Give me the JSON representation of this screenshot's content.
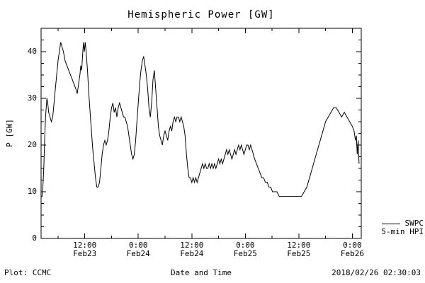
{
  "title": "Hemispheric Power [GW]",
  "axes": {
    "ylabel": "P [GW]",
    "xlabel": "Date and Time",
    "y_major_ticks": [
      0,
      10,
      20,
      30,
      40
    ],
    "y_minor_step": 2.5,
    "x_major_ticks": [
      {
        "hour": 12,
        "time": "12:00",
        "date": "Feb23"
      },
      {
        "hour": 24,
        "time": "0:00",
        "date": "Feb24"
      },
      {
        "hour": 36,
        "time": "12:00",
        "date": "Feb24"
      },
      {
        "hour": 48,
        "time": "0:00",
        "date": "Feb25"
      },
      {
        "hour": 60,
        "time": "12:00",
        "date": "Feb25"
      },
      {
        "hour": 72,
        "time": "0:00",
        "date": "Feb26"
      }
    ],
    "x_minor_step_hours": 6
  },
  "legend": {
    "label_line1": "SWPC",
    "label_line2": "5-min HPI"
  },
  "footer": {
    "left": "Plot: CCMC",
    "right": "2018/02/26 02:30:03"
  },
  "colors": {
    "line": "#000000",
    "frame": "#000000",
    "background": "#ffffff",
    "text": "#000000"
  },
  "chart_data": {
    "type": "line",
    "title": "Hemispheric Power [GW]",
    "xlabel": "Date and Time",
    "ylabel": "P [GW]",
    "x_unit": "hours since 2018-02-23 00:00 UT",
    "xlim": [
      2.2,
      74.0
    ],
    "ylim": [
      0,
      45
    ],
    "grid": false,
    "legend_position": "right-outside-bottom",
    "series": [
      {
        "name": "SWPC 5-min HPI",
        "points": [
          [
            2.2,
            9
          ],
          [
            2.4,
            9
          ],
          [
            2.6,
            11
          ],
          [
            2.8,
            15
          ],
          [
            3.0,
            21
          ],
          [
            3.2,
            26
          ],
          [
            3.5,
            30
          ],
          [
            3.7,
            29
          ],
          [
            3.9,
            27
          ],
          [
            4.2,
            26
          ],
          [
            4.5,
            25
          ],
          [
            4.8,
            26
          ],
          [
            5.1,
            29
          ],
          [
            5.4,
            32
          ],
          [
            5.7,
            35
          ],
          [
            6.0,
            38
          ],
          [
            6.3,
            40
          ],
          [
            6.6,
            42
          ],
          [
            6.9,
            41
          ],
          [
            7.2,
            40
          ],
          [
            7.6,
            38
          ],
          [
            8.0,
            37
          ],
          [
            8.4,
            36
          ],
          [
            8.8,
            35
          ],
          [
            9.2,
            34
          ],
          [
            9.6,
            33
          ],
          [
            10.0,
            32
          ],
          [
            10.3,
            31
          ],
          [
            10.6,
            33
          ],
          [
            10.9,
            35
          ],
          [
            11.1,
            37
          ],
          [
            11.3,
            36
          ],
          [
            11.5,
            39
          ],
          [
            11.7,
            42
          ],
          [
            11.9,
            40
          ],
          [
            12.1,
            42
          ],
          [
            12.3,
            40
          ],
          [
            12.6,
            36
          ],
          [
            12.9,
            31
          ],
          [
            13.2,
            27
          ],
          [
            13.5,
            23
          ],
          [
            13.8,
            19
          ],
          [
            14.1,
            16
          ],
          [
            14.4,
            13
          ],
          [
            14.7,
            11
          ],
          [
            15.0,
            11
          ],
          [
            15.3,
            12
          ],
          [
            15.6,
            15
          ],
          [
            15.9,
            18
          ],
          [
            16.2,
            20
          ],
          [
            16.5,
            21
          ],
          [
            16.8,
            20
          ],
          [
            17.1,
            21
          ],
          [
            17.4,
            23
          ],
          [
            17.7,
            26
          ],
          [
            18.0,
            28
          ],
          [
            18.3,
            29
          ],
          [
            18.6,
            27
          ],
          [
            18.9,
            28
          ],
          [
            19.2,
            26
          ],
          [
            19.5,
            28
          ],
          [
            19.8,
            29
          ],
          [
            20.1,
            28
          ],
          [
            20.4,
            27
          ],
          [
            20.7,
            26
          ],
          [
            21.0,
            26
          ],
          [
            21.3,
            25
          ],
          [
            21.6,
            24
          ],
          [
            21.9,
            22
          ],
          [
            22.2,
            20
          ],
          [
            22.5,
            18
          ],
          [
            22.8,
            17
          ],
          [
            23.1,
            18
          ],
          [
            23.4,
            21
          ],
          [
            23.7,
            25
          ],
          [
            24.0,
            29
          ],
          [
            24.3,
            33
          ],
          [
            24.6,
            36
          ],
          [
            24.9,
            38
          ],
          [
            25.2,
            39
          ],
          [
            25.5,
            37
          ],
          [
            25.8,
            35
          ],
          [
            26.1,
            32
          ],
          [
            26.4,
            28
          ],
          [
            26.7,
            26
          ],
          [
            27.0,
            29
          ],
          [
            27.3,
            34
          ],
          [
            27.6,
            36
          ],
          [
            27.9,
            32
          ],
          [
            28.2,
            28
          ],
          [
            28.5,
            24
          ],
          [
            28.8,
            22
          ],
          [
            29.1,
            21
          ],
          [
            29.4,
            20
          ],
          [
            29.7,
            22
          ],
          [
            30.0,
            23
          ],
          [
            30.3,
            22
          ],
          [
            30.6,
            21
          ],
          [
            30.9,
            23
          ],
          [
            31.2,
            24
          ],
          [
            31.5,
            23
          ],
          [
            31.8,
            25
          ],
          [
            32.1,
            26
          ],
          [
            32.4,
            25
          ],
          [
            32.7,
            26
          ],
          [
            33.0,
            26
          ],
          [
            33.3,
            25
          ],
          [
            33.6,
            26
          ],
          [
            33.9,
            25
          ],
          [
            34.2,
            24
          ],
          [
            34.5,
            22
          ],
          [
            34.8,
            18
          ],
          [
            35.1,
            15
          ],
          [
            35.4,
            13
          ],
          [
            35.7,
            13
          ],
          [
            36.0,
            12
          ],
          [
            36.3,
            13
          ],
          [
            36.6,
            12
          ],
          [
            36.9,
            13
          ],
          [
            37.2,
            12
          ],
          [
            37.5,
            13
          ],
          [
            37.8,
            14
          ],
          [
            38.1,
            15
          ],
          [
            38.4,
            16
          ],
          [
            38.7,
            15
          ],
          [
            39.0,
            16
          ],
          [
            39.3,
            15
          ],
          [
            39.6,
            15
          ],
          [
            39.9,
            16
          ],
          [
            40.2,
            15
          ],
          [
            40.5,
            16
          ],
          [
            40.8,
            15
          ],
          [
            41.1,
            16
          ],
          [
            41.4,
            15
          ],
          [
            41.7,
            16
          ],
          [
            42.0,
            17
          ],
          [
            42.3,
            16
          ],
          [
            42.6,
            17
          ],
          [
            42.9,
            16
          ],
          [
            43.2,
            17
          ],
          [
            43.5,
            18
          ],
          [
            43.8,
            19
          ],
          [
            44.1,
            18
          ],
          [
            44.4,
            19
          ],
          [
            44.7,
            18
          ],
          [
            45.0,
            17
          ],
          [
            45.3,
            18
          ],
          [
            45.6,
            19
          ],
          [
            45.9,
            18
          ],
          [
            46.2,
            19
          ],
          [
            46.5,
            20
          ],
          [
            46.8,
            19
          ],
          [
            47.1,
            20
          ],
          [
            47.4,
            19
          ],
          [
            47.7,
            18
          ],
          [
            48.0,
            19
          ],
          [
            48.3,
            20
          ],
          [
            48.6,
            20
          ],
          [
            48.9,
            19
          ],
          [
            49.2,
            20
          ],
          [
            49.5,
            19
          ],
          [
            49.8,
            18
          ],
          [
            50.1,
            17
          ],
          [
            50.5,
            16
          ],
          [
            50.9,
            15
          ],
          [
            51.3,
            14
          ],
          [
            51.7,
            13
          ],
          [
            52.1,
            13
          ],
          [
            52.5,
            12
          ],
          [
            52.9,
            12
          ],
          [
            53.3,
            11
          ],
          [
            53.7,
            11
          ],
          [
            54.1,
            10
          ],
          [
            54.6,
            10
          ],
          [
            55.1,
            10
          ],
          [
            55.6,
            9
          ],
          [
            56.2,
            9
          ],
          [
            57.0,
            9
          ],
          [
            58.0,
            9
          ],
          [
            59.0,
            9
          ],
          [
            60.0,
            9
          ],
          [
            60.6,
            9
          ],
          [
            61.2,
            10
          ],
          [
            61.8,
            11
          ],
          [
            62.4,
            13
          ],
          [
            63.0,
            15
          ],
          [
            63.6,
            17
          ],
          [
            64.2,
            19
          ],
          [
            64.8,
            21
          ],
          [
            65.4,
            23
          ],
          [
            66.0,
            25
          ],
          [
            66.6,
            26
          ],
          [
            67.2,
            27
          ],
          [
            67.8,
            28
          ],
          [
            68.4,
            28
          ],
          [
            69.0,
            27
          ],
          [
            69.6,
            26
          ],
          [
            70.2,
            27
          ],
          [
            70.8,
            26
          ],
          [
            71.4,
            25
          ],
          [
            72.0,
            24
          ],
          [
            72.4,
            23
          ],
          [
            72.7,
            21
          ],
          [
            72.9,
            22
          ],
          [
            73.1,
            18
          ],
          [
            73.3,
            21
          ],
          [
            73.5,
            16
          ]
        ]
      }
    ]
  }
}
